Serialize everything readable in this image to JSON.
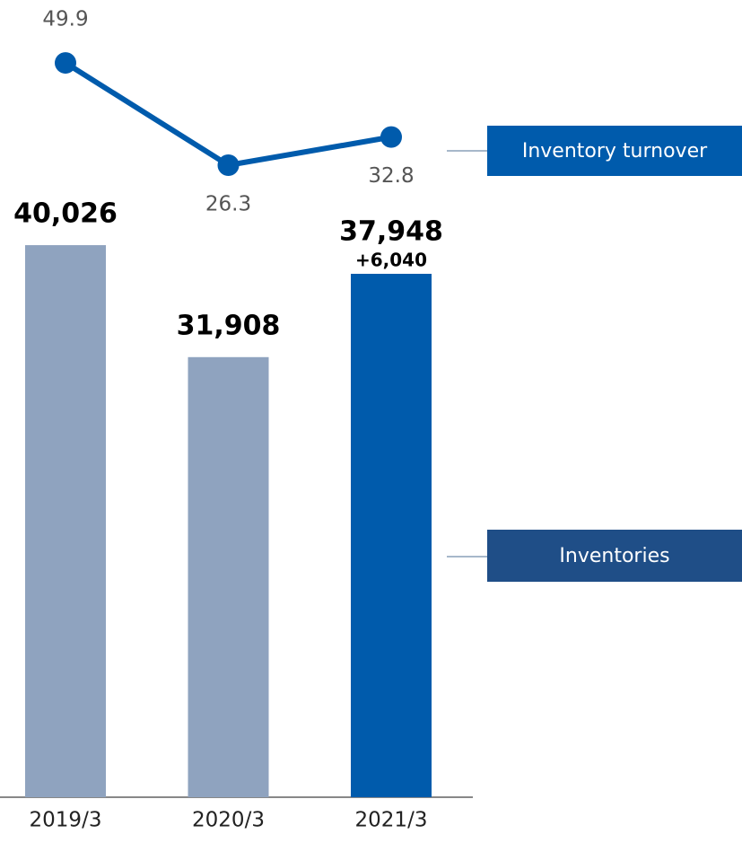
{
  "chart_data": {
    "type": "bar",
    "categories": [
      "2019/3",
      "2020/3",
      "2021/3"
    ],
    "series": [
      {
        "name": "Inventories",
        "type": "bar",
        "colors": [
          "#8fa3bf",
          "#8fa3bf",
          "#005bac"
        ],
        "values": [
          40026,
          31908,
          37948
        ],
        "value_labels": [
          "40,026",
          "31,908",
          "37,948"
        ]
      },
      {
        "name": "Inventory turnover",
        "type": "line",
        "axis": "y2",
        "color": "#005bac",
        "values": [
          49.9,
          26.3,
          32.8
        ]
      }
    ],
    "annotation": "+6,040",
    "ylim": [
      0,
      57800
    ],
    "y2lim": [
      0,
      64
    ]
  }
}
